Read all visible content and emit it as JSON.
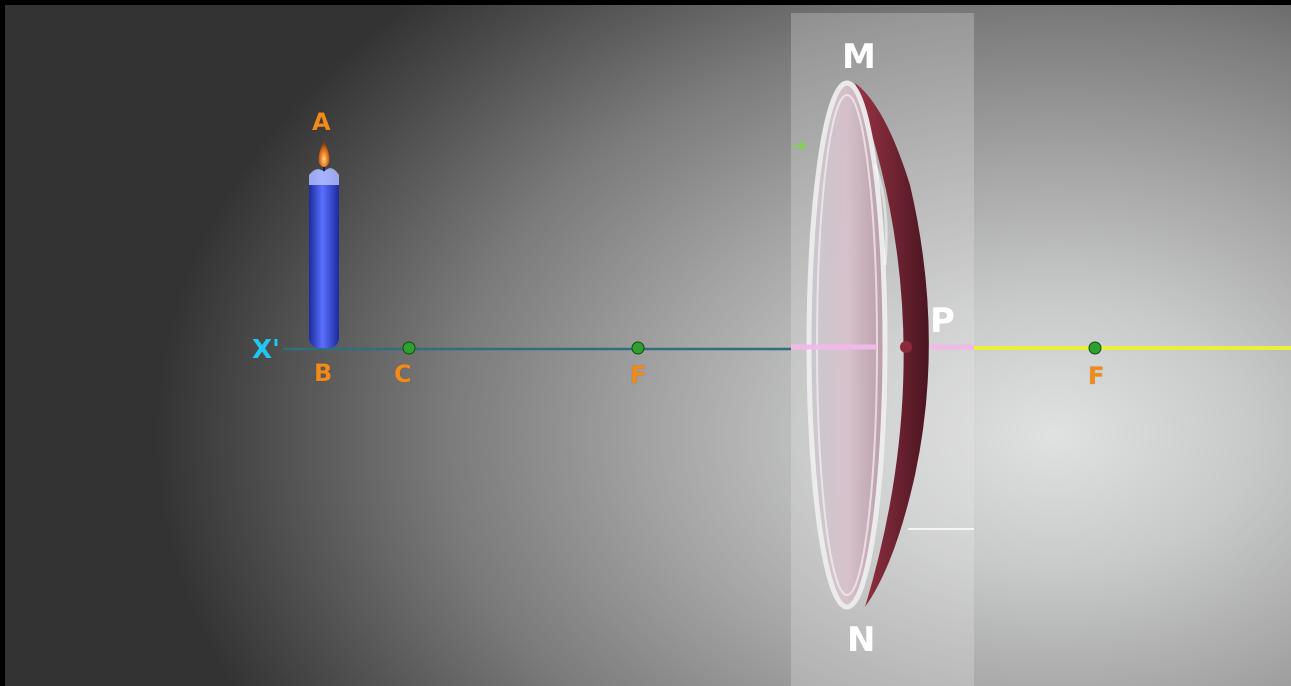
{
  "labels": {
    "object_top": "A",
    "object_base": "B",
    "center_of_curvature": "C",
    "focus_left": "F",
    "focus_right": "F",
    "axis_end": "X'",
    "lens_top": "M",
    "lens_bottom": "N",
    "pole": "P"
  },
  "colors": {
    "axis": "#2f6f7c",
    "candle": "#3a4fd9",
    "flame": "#e0701c",
    "lens_rim": "#7a2a38",
    "lens_face": "#d6b7c4",
    "ray_yellow": "#e8f03a",
    "pink_line": "#f2b8ea",
    "point_green": "#2fa02f",
    "label_orange": "#f28a1a",
    "label_cyan": "#1fc7f2"
  }
}
